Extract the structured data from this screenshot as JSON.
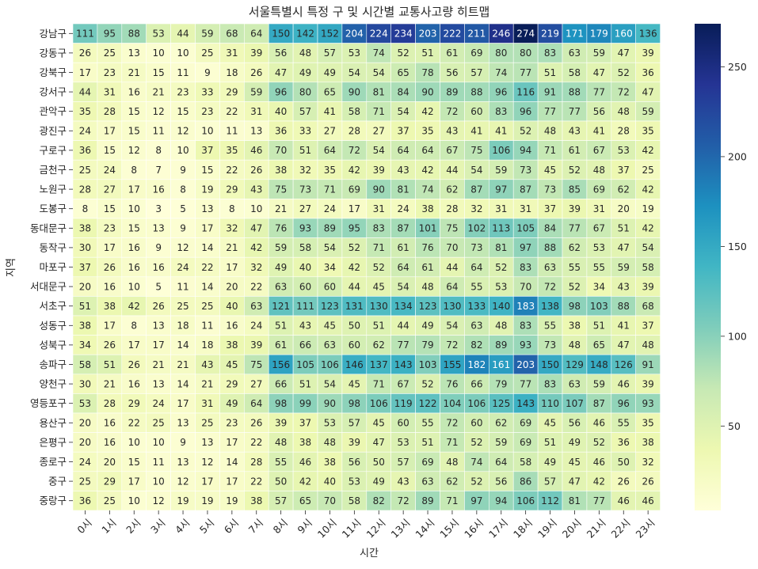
{
  "chart_data": {
    "type": "heatmap",
    "title": "서울특별시 특정 구 및 시간별 교통사고량 히트맵",
    "xlabel": "시간",
    "ylabel": "지역",
    "x_categories": [
      "0시",
      "1시",
      "2시",
      "3시",
      "4시",
      "5시",
      "6시",
      "7시",
      "8시",
      "9시",
      "10시",
      "11시",
      "12시",
      "13시",
      "14시",
      "15시",
      "16시",
      "17시",
      "18시",
      "19시",
      "20시",
      "21시",
      "22시",
      "23시"
    ],
    "y_categories": [
      "강남구",
      "강동구",
      "강북구",
      "강서구",
      "관악구",
      "광진구",
      "구로구",
      "금천구",
      "노원구",
      "도봉구",
      "동대문구",
      "동작구",
      "마포구",
      "서대문구",
      "서초구",
      "성동구",
      "성북구",
      "송파구",
      "양천구",
      "영등포구",
      "용산구",
      "은평구",
      "종로구",
      "중구",
      "중랑구"
    ],
    "values": [
      [
        111,
        95,
        88,
        53,
        44,
        59,
        68,
        64,
        150,
        142,
        152,
        204,
        224,
        234,
        203,
        222,
        211,
        246,
        274,
        219,
        171,
        179,
        160,
        136
      ],
      [
        26,
        25,
        13,
        10,
        10,
        25,
        31,
        39,
        56,
        48,
        57,
        53,
        74,
        52,
        51,
        61,
        69,
        80,
        80,
        83,
        63,
        59,
        47,
        39
      ],
      [
        17,
        23,
        21,
        15,
        11,
        9,
        18,
        26,
        47,
        49,
        49,
        54,
        54,
        65,
        78,
        56,
        57,
        74,
        77,
        51,
        58,
        47,
        52,
        36
      ],
      [
        44,
        31,
        16,
        21,
        23,
        33,
        29,
        59,
        96,
        80,
        65,
        90,
        81,
        84,
        90,
        89,
        88,
        96,
        116,
        91,
        88,
        77,
        72,
        47
      ],
      [
        35,
        28,
        15,
        12,
        15,
        23,
        22,
        31,
        40,
        57,
        41,
        58,
        71,
        54,
        42,
        72,
        60,
        83,
        96,
        77,
        77,
        56,
        48,
        59
      ],
      [
        24,
        17,
        15,
        11,
        12,
        10,
        11,
        13,
        36,
        33,
        27,
        28,
        27,
        37,
        35,
        43,
        41,
        41,
        52,
        48,
        43,
        41,
        28,
        35
      ],
      [
        36,
        15,
        12,
        8,
        10,
        37,
        35,
        46,
        70,
        51,
        64,
        72,
        54,
        64,
        64,
        67,
        75,
        106,
        94,
        71,
        61,
        67,
        53,
        42
      ],
      [
        25,
        24,
        8,
        7,
        9,
        15,
        22,
        26,
        38,
        32,
        35,
        42,
        39,
        43,
        42,
        44,
        54,
        59,
        73,
        45,
        52,
        48,
        37,
        25
      ],
      [
        28,
        27,
        17,
        16,
        8,
        19,
        29,
        43,
        75,
        73,
        71,
        69,
        90,
        81,
        74,
        62,
        87,
        97,
        87,
        73,
        85,
        69,
        62,
        42
      ],
      [
        8,
        15,
        10,
        3,
        5,
        13,
        8,
        10,
        21,
        27,
        24,
        17,
        31,
        24,
        38,
        28,
        32,
        31,
        31,
        37,
        39,
        31,
        20,
        19
      ],
      [
        38,
        23,
        15,
        13,
        9,
        17,
        32,
        47,
        76,
        93,
        89,
        95,
        83,
        87,
        101,
        75,
        102,
        113,
        105,
        84,
        77,
        67,
        51,
        42
      ],
      [
        30,
        17,
        16,
        9,
        12,
        14,
        21,
        42,
        59,
        58,
        54,
        52,
        71,
        61,
        76,
        70,
        73,
        81,
        97,
        88,
        62,
        53,
        47,
        54
      ],
      [
        37,
        26,
        16,
        16,
        24,
        22,
        17,
        32,
        49,
        40,
        34,
        42,
        52,
        64,
        61,
        44,
        64,
        52,
        83,
        63,
        55,
        55,
        59,
        58
      ],
      [
        20,
        16,
        10,
        5,
        11,
        14,
        20,
        22,
        63,
        60,
        60,
        44,
        45,
        54,
        48,
        64,
        55,
        53,
        70,
        72,
        52,
        34,
        43,
        39
      ],
      [
        51,
        38,
        42,
        26,
        25,
        25,
        40,
        63,
        121,
        111,
        123,
        131,
        130,
        134,
        123,
        130,
        133,
        140,
        183,
        138,
        98,
        103,
        88,
        68
      ],
      [
        38,
        17,
        8,
        13,
        18,
        11,
        16,
        24,
        51,
        43,
        45,
        50,
        51,
        44,
        49,
        54,
        63,
        48,
        83,
        55,
        38,
        51,
        41,
        37
      ],
      [
        34,
        26,
        17,
        17,
        14,
        18,
        38,
        39,
        61,
        66,
        63,
        60,
        62,
        77,
        79,
        72,
        82,
        89,
        93,
        73,
        48,
        65,
        47,
        48
      ],
      [
        58,
        51,
        26,
        21,
        21,
        43,
        45,
        75,
        156,
        105,
        106,
        146,
        137,
        143,
        103,
        155,
        182,
        161,
        203,
        150,
        129,
        148,
        126,
        91
      ],
      [
        30,
        21,
        16,
        13,
        14,
        21,
        29,
        27,
        66,
        51,
        54,
        45,
        71,
        67,
        52,
        76,
        66,
        79,
        77,
        83,
        63,
        59,
        46,
        39
      ],
      [
        53,
        28,
        29,
        24,
        17,
        31,
        49,
        64,
        98,
        99,
        90,
        98,
        106,
        119,
        122,
        104,
        106,
        125,
        143,
        110,
        107,
        87,
        96,
        93
      ],
      [
        20,
        16,
        22,
        25,
        13,
        25,
        23,
        26,
        39,
        37,
        53,
        57,
        45,
        60,
        55,
        72,
        60,
        62,
        69,
        45,
        56,
        46,
        55,
        35
      ],
      [
        20,
        16,
        10,
        10,
        9,
        13,
        17,
        22,
        48,
        38,
        48,
        39,
        47,
        53,
        51,
        71,
        52,
        59,
        69,
        51,
        49,
        52,
        36,
        38
      ],
      [
        24,
        20,
        15,
        11,
        13,
        12,
        14,
        28,
        55,
        46,
        38,
        56,
        50,
        57,
        69,
        48,
        74,
        64,
        58,
        49,
        45,
        46,
        50,
        32
      ],
      [
        25,
        29,
        17,
        10,
        12,
        17,
        17,
        22,
        50,
        42,
        40,
        53,
        49,
        43,
        63,
        62,
        52,
        56,
        86,
        57,
        47,
        42,
        26,
        26
      ],
      [
        36,
        25,
        10,
        12,
        19,
        19,
        19,
        38,
        57,
        65,
        70,
        58,
        82,
        72,
        89,
        71,
        97,
        94,
        106,
        112,
        81,
        77,
        46,
        46
      ]
    ],
    "vmin": 3,
    "vmax": 274,
    "colormap": "YlGnBu",
    "colorbar_ticks": [
      50,
      100,
      150,
      200,
      250
    ],
    "annotations": true
  }
}
